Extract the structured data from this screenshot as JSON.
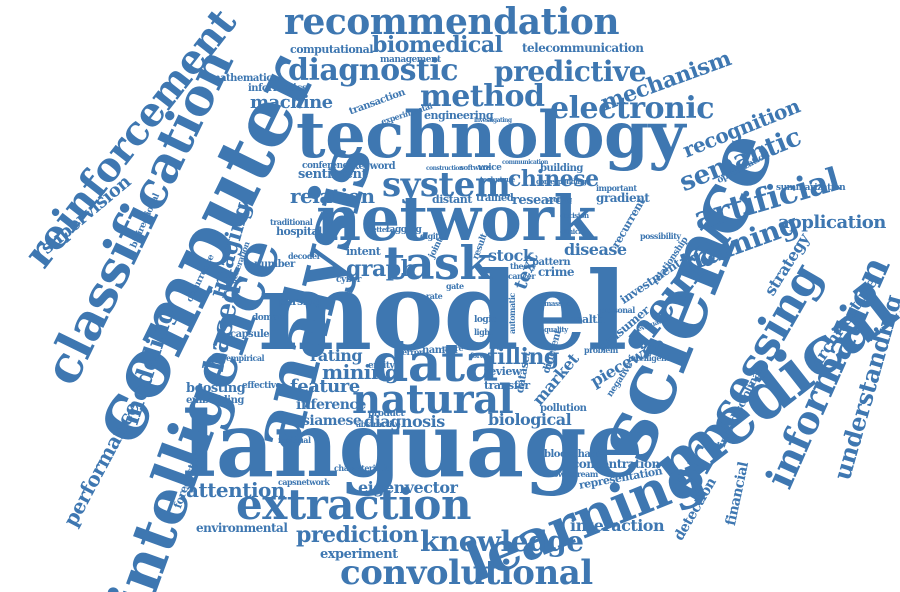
{
  "cloud": {
    "color": "#3e77b1",
    "words": [
      "model",
      "language",
      "technology",
      "network",
      "science",
      "computer",
      "analysis",
      "medical",
      "intelligence",
      "classification",
      "learning",
      "processing",
      "reinforcement",
      "data",
      "natural",
      "extraction",
      "task",
      "recommendation",
      "system",
      "information",
      "convolutional",
      "knowledge",
      "diagnostic",
      "predictive",
      "method",
      "electronic",
      "neural",
      "artificial",
      "biomedical",
      "training",
      "understanding",
      "application",
      "semantic",
      "recognition",
      "mechanism",
      "prediction",
      "chinese",
      "mining",
      "graph",
      "relation",
      "modeling",
      "based",
      "imaging",
      "supervision",
      "performance",
      "attention",
      "feature",
      "filling",
      "rating",
      "biological",
      "diagnosis",
      "eigenvector",
      "interaction",
      "detection",
      "financial",
      "architecture",
      "strategy",
      "representation",
      "concentration",
      "investment",
      "piecewise",
      "market",
      "stock",
      "disease",
      "text",
      "crime",
      "health",
      "review",
      "transfer",
      "inference",
      "siamese",
      "boosting",
      "embedding",
      "forecasting",
      "environmental",
      "experiment",
      "consumer",
      "interdisciplinary",
      "gradient",
      "optimization",
      "summarization",
      "telecommunication",
      "computational",
      "machine",
      "informatics",
      "mathematical",
      "management",
      "engineering",
      "transaction",
      "research",
      "distant",
      "trained",
      "building",
      "intent",
      "pattern",
      "capsule",
      "sentiment",
      "keyword",
      "conference",
      "hospital",
      "traditional",
      "cyber",
      "entity",
      "named",
      "number",
      "domain",
      "empirical",
      "effective",
      "residual",
      "capsnetwork",
      "characteristic",
      "blockchain",
      "downstream",
      "pollution",
      "product",
      "abstractive",
      "voice",
      "tagging",
      "decoder",
      "bidirectional",
      "occurrence",
      "generation",
      "parsing",
      "recurrent",
      "relationship",
      "possibility",
      "important",
      "personal",
      "intelligent",
      "problem",
      "automatic",
      "different",
      "dataset",
      "quality",
      "theory",
      "cancer",
      "rate",
      "gate",
      "joint",
      "result",
      "light",
      "logic",
      "massive",
      "evaluation",
      "negative",
      "digital",
      "error",
      "more",
      "forest",
      "better",
      "scoring",
      "decision",
      "clinical",
      "technique",
      "corresponding",
      "experimental",
      "investigating",
      "software",
      "construction",
      "communication"
    ]
  }
}
